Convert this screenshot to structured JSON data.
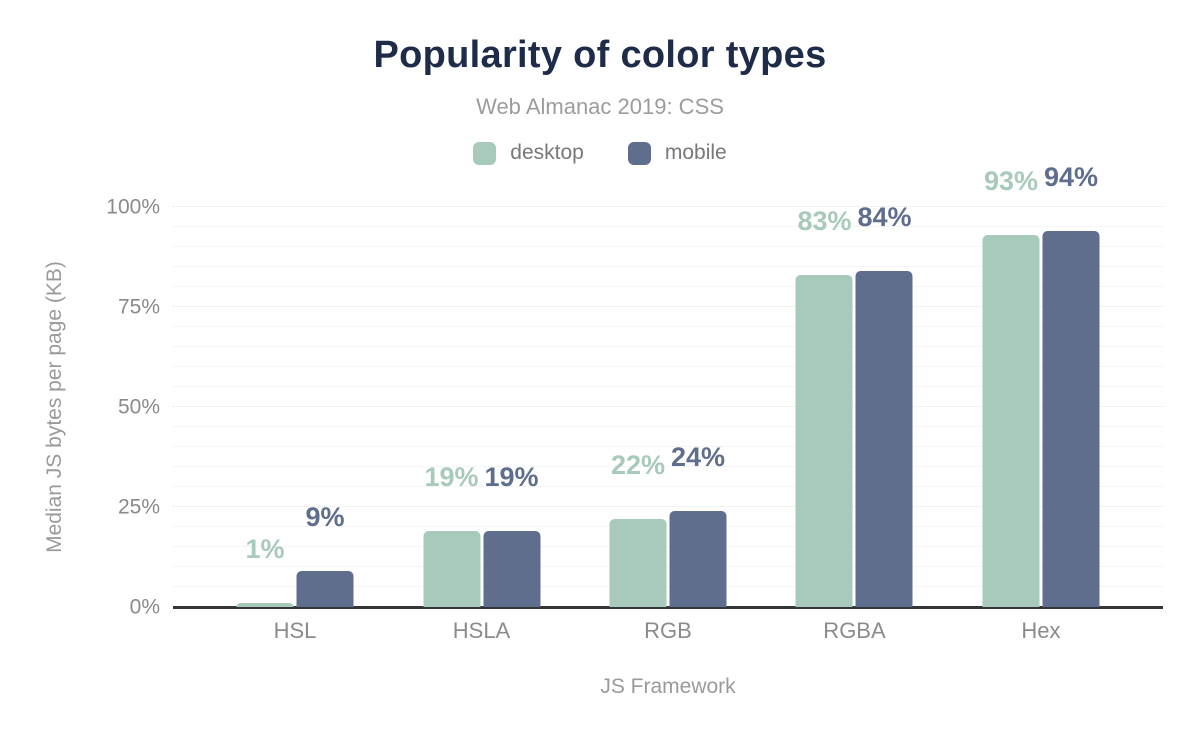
{
  "chart_data": {
    "type": "bar",
    "title": "Popularity of color types",
    "subtitle": "Web Almanac 2019: CSS",
    "categories": [
      "HSL",
      "HSLA",
      "RGB",
      "RGBA",
      "Hex"
    ],
    "series": [
      {
        "name": "desktop",
        "color": "#a7cabb",
        "values": [
          1,
          19,
          22,
          83,
          93
        ]
      },
      {
        "name": "mobile",
        "color": "#5f6e8c",
        "values": [
          9,
          19,
          24,
          84,
          94
        ]
      }
    ],
    "value_suffix": "%",
    "xlabel": "JS Framework",
    "ylabel": "Median JS bytes per page (KB)",
    "ylim": [
      0,
      100
    ],
    "yticks": [
      0,
      25,
      50,
      75,
      100
    ],
    "ytick_suffix": "%",
    "minor_grid_step": 5,
    "grid": true,
    "legend_position": "top",
    "legend": [
      "desktop",
      "mobile"
    ]
  },
  "colors": {
    "title": "#1e2b49",
    "subtitle": "#9c9c9c",
    "axis_line": "#323639",
    "tick_text": "#8a8a8a",
    "desktop": "#a7cabb",
    "mobile": "#5f6e8c",
    "background": "#ffffff"
  }
}
